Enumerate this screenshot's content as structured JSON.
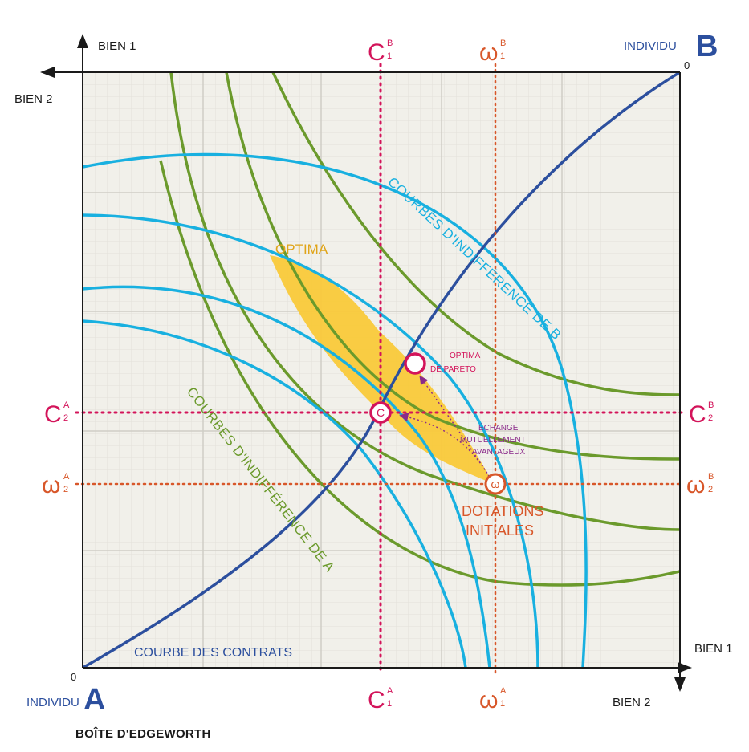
{
  "title": "BOÎTE D'EDGEWORTH",
  "individual_a": {
    "prefix": "INDIVIDU",
    "letter": "A",
    "origin": "0"
  },
  "individual_b": {
    "prefix": "INDIVIDU",
    "letter": "B",
    "origin": "0"
  },
  "axes": {
    "a_horizontal": "BIEN 1",
    "a_vertical": "BIEN 2",
    "b_horizontal": "BIEN 1",
    "b_vertical": "BIEN 2"
  },
  "markers": {
    "c1b": {
      "main": "C",
      "sup": "B",
      "sub": "1"
    },
    "w1b": {
      "main": "ω",
      "sup": "B",
      "sub": "1"
    },
    "c1a": {
      "main": "C",
      "sup": "A",
      "sub": "1"
    },
    "w1a": {
      "main": "ω",
      "sup": "A",
      "sub": "1"
    },
    "c2a": {
      "main": "C",
      "sup": "A",
      "sub": "2"
    },
    "w2a": {
      "main": "ω",
      "sup": "A",
      "sub": "2"
    },
    "c2b": {
      "main": "C",
      "sup": "B",
      "sub": "2"
    },
    "w2b": {
      "main": "ω",
      "sup": "B",
      "sub": "2"
    }
  },
  "labels": {
    "indiff_b": "COURBES D'INDIFFÉRENCE DE B",
    "indiff_a": "COURBES D'INDIFFÉRENCE DE A",
    "optima": "OPTIMA",
    "pareto_line1": "OPTIMA",
    "pareto_line2": "DE PARETO",
    "exchange_line1": "ÉCHANGE",
    "exchange_line2": "MUTUELLEMENT",
    "exchange_line3": "AVANTAGEUX",
    "endow_line1": "DOTATIONS",
    "endow_line2": "INITIALES",
    "contract_curve": "COURBE DES CONTRATS",
    "point_c": "C",
    "point_w": "ω"
  },
  "colors": {
    "indiff_b": "#18b0e0",
    "indiff_a": "#6b9a2c",
    "contract_curve": "#2c4f9e",
    "optima_fill": "#f9c93a",
    "c_lines": "#d3145a",
    "w_lines": "#d8572a",
    "grid_bg": "#f1f0ea"
  }
}
